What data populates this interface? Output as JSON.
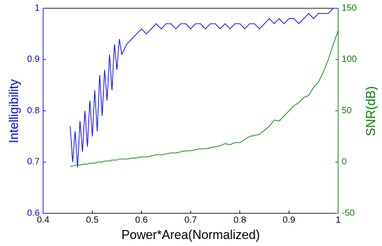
{
  "chart_data": {
    "type": "line",
    "xlabel": "Power*Area(Normalized)",
    "ylabel": "Intelligibility",
    "y2label": "SNR(dB)",
    "x": [
      0.455,
      0.46,
      0.465,
      0.47,
      0.475,
      0.48,
      0.485,
      0.49,
      0.495,
      0.5,
      0.505,
      0.51,
      0.515,
      0.52,
      0.525,
      0.53,
      0.535,
      0.54,
      0.545,
      0.55,
      0.555,
      0.56,
      0.57,
      0.58,
      0.59,
      0.6,
      0.61,
      0.62,
      0.63,
      0.64,
      0.65,
      0.66,
      0.67,
      0.68,
      0.69,
      0.7,
      0.71,
      0.72,
      0.73,
      0.74,
      0.75,
      0.76,
      0.77,
      0.78,
      0.79,
      0.8,
      0.81,
      0.82,
      0.83,
      0.84,
      0.85,
      0.86,
      0.87,
      0.88,
      0.89,
      0.9,
      0.91,
      0.92,
      0.93,
      0.94,
      0.95,
      0.96,
      0.97,
      0.98,
      0.99,
      1.0
    ],
    "series": [
      {
        "name": "Intelligibility",
        "color": "#0000ff",
        "axis": "y",
        "values": [
          0.77,
          0.7,
          0.76,
          0.69,
          0.78,
          0.72,
          0.8,
          0.73,
          0.82,
          0.75,
          0.84,
          0.76,
          0.87,
          0.79,
          0.88,
          0.82,
          0.91,
          0.84,
          0.93,
          0.88,
          0.94,
          0.91,
          0.93,
          0.94,
          0.95,
          0.96,
          0.95,
          0.96,
          0.97,
          0.96,
          0.97,
          0.97,
          0.96,
          0.97,
          0.97,
          0.96,
          0.97,
          0.97,
          0.96,
          0.97,
          0.97,
          0.96,
          0.97,
          0.96,
          0.97,
          0.97,
          0.96,
          0.97,
          0.97,
          0.96,
          0.97,
          0.98,
          0.97,
          0.98,
          0.97,
          0.98,
          0.98,
          0.97,
          0.98,
          0.99,
          0.98,
          0.99,
          0.99,
          0.99,
          1.0,
          1.0
        ]
      },
      {
        "name": "SNR(dB)",
        "color": "#007f00",
        "axis": "y2",
        "values": [
          -4,
          -4,
          -3,
          -3,
          -3,
          -2,
          -2,
          -2,
          -1,
          -1,
          -1,
          0,
          0,
          0,
          1,
          1,
          1,
          2,
          2,
          2,
          3,
          3,
          3,
          4,
          4,
          5,
          5,
          6,
          7,
          7,
          8,
          9,
          9,
          10,
          11,
          11,
          12,
          13,
          13,
          14,
          15,
          16,
          18,
          17,
          19,
          19,
          22,
          25,
          26,
          27,
          31,
          35,
          41,
          40,
          45,
          50,
          55,
          58,
          63,
          65,
          73,
          78,
          88,
          100,
          115,
          128
        ]
      }
    ],
    "xlim": [
      0.4,
      1
    ],
    "xticks": [
      0.4,
      0.5,
      0.6,
      0.7,
      0.8,
      0.9,
      1
    ],
    "ylim": [
      0.6,
      1
    ],
    "yticks": [
      0.6,
      0.7,
      0.8,
      0.9,
      1
    ],
    "y2lim": [
      -50,
      150
    ],
    "y2ticks": [
      -50,
      0,
      50,
      100,
      150
    ],
    "grid": false
  }
}
